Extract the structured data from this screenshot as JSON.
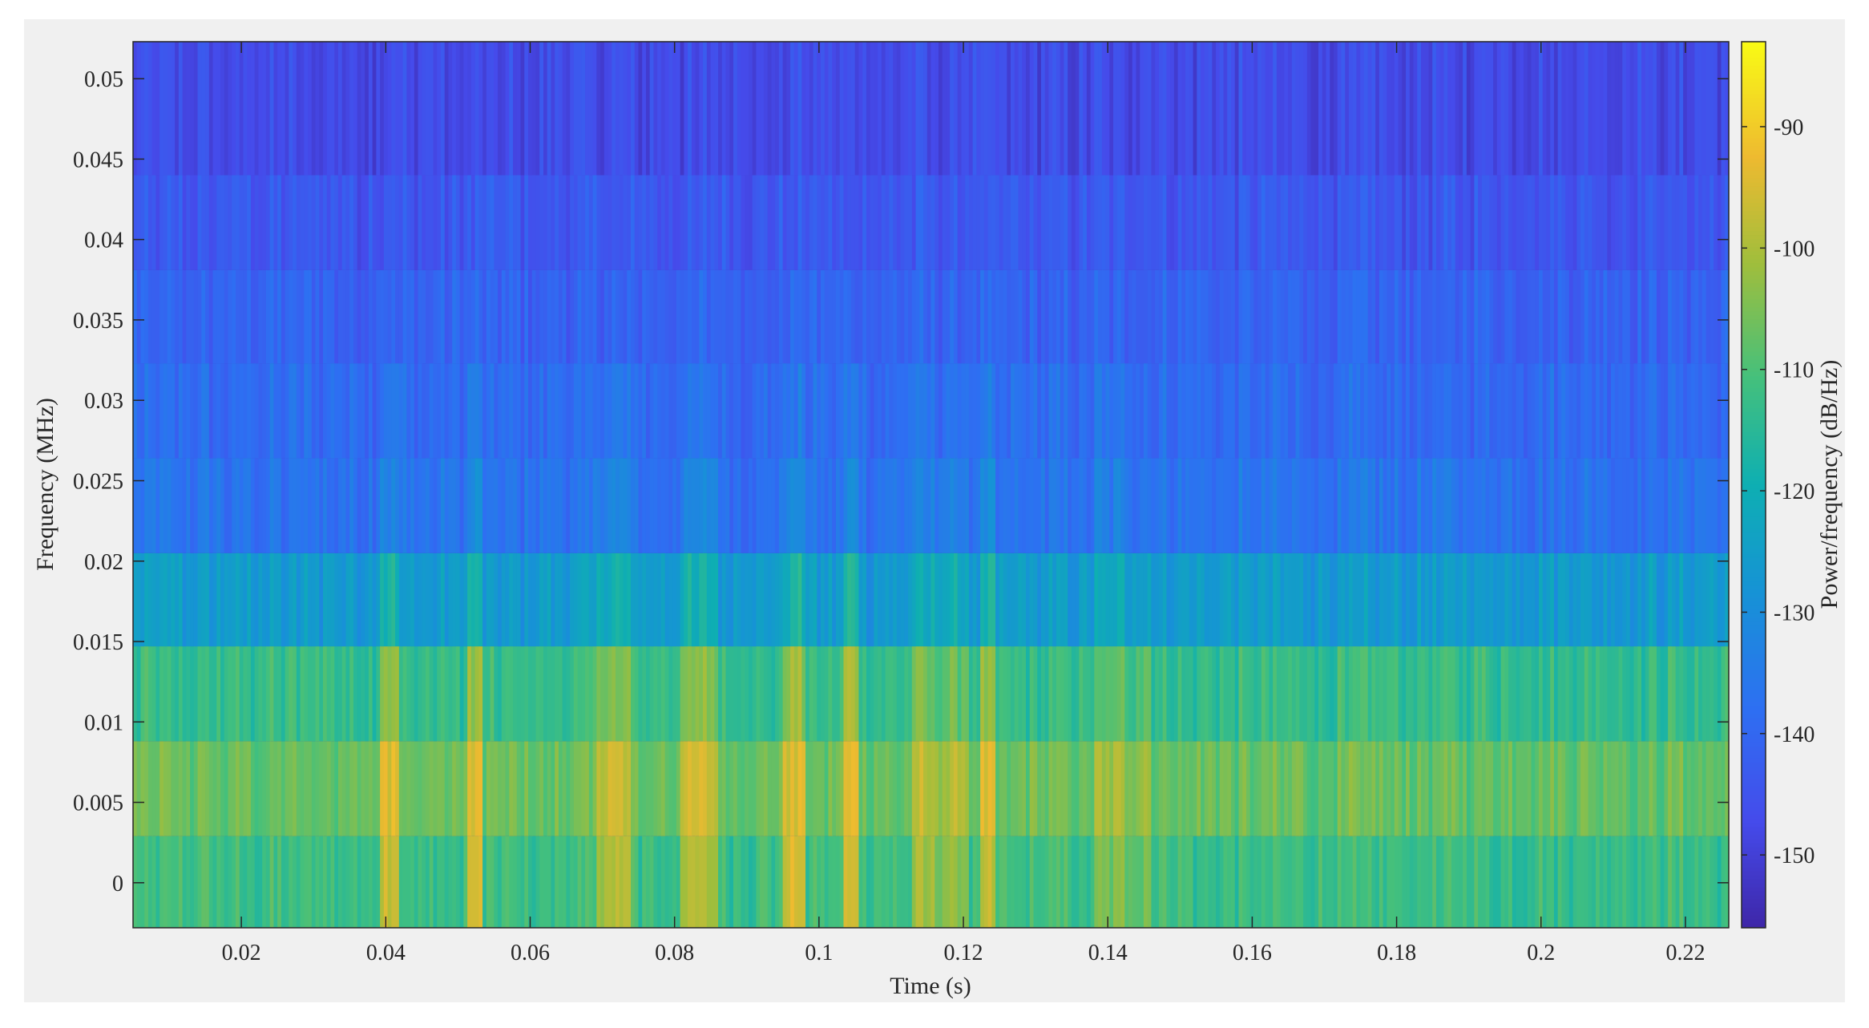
{
  "chart_data": {
    "type": "heatmap",
    "title": "",
    "xlabel": "Time (s)",
    "ylabel": "Frequency (MHz)",
    "colorbar_label": "Power/frequency (dB/Hz)",
    "colormap": "parula",
    "xlim": [
      0.005,
      0.226
    ],
    "ylim": [
      -0.0028,
      0.0523
    ],
    "clim": [
      -156,
      -83
    ],
    "x_ticks": [
      0.02,
      0.04,
      0.06,
      0.08,
      0.1,
      0.12,
      0.14,
      0.16,
      0.18,
      0.2,
      0.22
    ],
    "x_tick_labels": [
      "0.02",
      "0.04",
      "0.06",
      "0.08",
      "0.1",
      "0.12",
      "0.14",
      "0.16",
      "0.18",
      "0.2",
      "0.22"
    ],
    "y_ticks": [
      0,
      0.005,
      0.01,
      0.015,
      0.02,
      0.025,
      0.03,
      0.035,
      0.04,
      0.045,
      0.05
    ],
    "y_tick_labels": [
      "0",
      "0.005",
      "0.01",
      "0.015",
      "0.02",
      "0.025",
      "0.03",
      "0.035",
      "0.04",
      "0.045",
      "0.05"
    ],
    "colorbar_ticks": [
      -90,
      -100,
      -110,
      -120,
      -130,
      -140,
      -150
    ],
    "colorbar_tick_labels": [
      "-90",
      "-100",
      "-110",
      "-120",
      "-130",
      "-140",
      "-150"
    ],
    "frequency_bands": [
      {
        "y_low": -0.0028,
        "y_high": 0.0029,
        "mean_db": -112
      },
      {
        "y_low": 0.0029,
        "y_high": 0.0088,
        "mean_db": -107
      },
      {
        "y_low": 0.0088,
        "y_high": 0.0147,
        "mean_db": -113
      },
      {
        "y_low": 0.0147,
        "y_high": 0.0205,
        "mean_db": -126
      },
      {
        "y_low": 0.0205,
        "y_high": 0.0264,
        "mean_db": -137
      },
      {
        "y_low": 0.0264,
        "y_high": 0.0323,
        "mean_db": -139
      },
      {
        "y_low": 0.0323,
        "y_high": 0.0381,
        "mean_db": -141
      },
      {
        "y_low": 0.0381,
        "y_high": 0.044,
        "mean_db": -144
      },
      {
        "y_low": 0.044,
        "y_high": 0.0523,
        "mean_db": -147
      }
    ],
    "bright_time_bursts": [
      {
        "t_start": 0.039,
        "t_end": 0.042,
        "boost_db": 16
      },
      {
        "t_start": 0.0515,
        "t_end": 0.0535,
        "boost_db": 15
      },
      {
        "t_start": 0.069,
        "t_end": 0.074,
        "boost_db": 12
      },
      {
        "t_start": 0.081,
        "t_end": 0.086,
        "boost_db": 12
      },
      {
        "t_start": 0.095,
        "t_end": 0.098,
        "boost_db": 15
      },
      {
        "t_start": 0.1035,
        "t_end": 0.1055,
        "boost_db": 16
      },
      {
        "t_start": 0.113,
        "t_end": 0.121,
        "boost_db": 9
      },
      {
        "t_start": 0.1225,
        "t_end": 0.1245,
        "boost_db": 12
      },
      {
        "t_start": 0.138,
        "t_end": 0.146,
        "boost_db": 6
      }
    ],
    "noise_db": 5,
    "grid": false
  }
}
